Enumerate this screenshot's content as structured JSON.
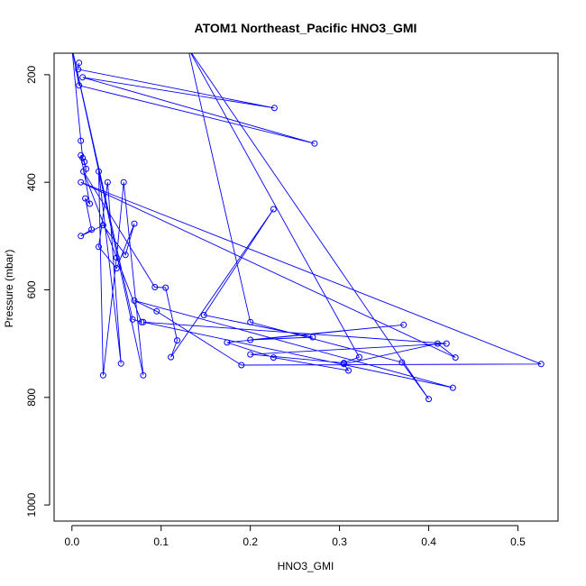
{
  "chart_data": {
    "type": "line",
    "title": "ATOM1 Northeast_Pacific HNO3_GMI",
    "xlabel": "HNO3_GMI",
    "ylabel": "Pressure (mbar)",
    "xlim": [
      -0.02,
      0.545
    ],
    "ylim": [
      1030,
      160
    ],
    "y_reversed": true,
    "x_ticks": [
      0.0,
      0.1,
      0.2,
      0.3,
      0.4,
      0.5
    ],
    "x_tick_labels": [
      "0.0",
      "0.1",
      "0.2",
      "0.3",
      "0.4",
      "0.5"
    ],
    "y_ticks": [
      200,
      400,
      600,
      800,
      1000
    ],
    "y_tick_labels": [
      "200",
      "400",
      "600",
      "800",
      "1000"
    ],
    "series_color": "#0000ff",
    "series": [
      {
        "x": [
          0.008,
          0.007,
          0.227,
          0.012,
          0.272,
          0.008,
          0.0,
          0.01,
          0.012,
          0.016,
          0.014,
          0.01,
          0.02,
          0.015,
          0.022,
          0.01,
          0.035,
          0.06,
          0.07,
          0.05,
          0.03,
          0.04,
          0.055,
          0.03,
          0.035,
          0.05,
          0.058,
          0.08,
          0.0,
          0.068,
          0.078,
          0.013,
          0.093,
          0.105,
          0.118,
          0.111,
          0.226,
          0.148,
          0.27,
          0.2,
          0.372,
          0.174,
          0.226,
          0.31,
          0.305,
          0.41,
          0.43,
          0.01,
          0.526,
          0.19,
          0.095,
          0.07,
          0.427,
          0.08,
          0.42,
          0.2,
          0.305,
          0.322,
          0.13,
          0.4,
          0.37,
          0.2,
          0.13,
          0.2,
          0.118,
          0.03,
          0.01
        ],
        "y": [
          178,
          190,
          262,
          205,
          328,
          220,
          150,
          323,
          355,
          375,
          362,
          350,
          440,
          430,
          488,
          500,
          480,
          535,
          477,
          560,
          520,
          400,
          737,
          380,
          759,
          540,
          400,
          759,
          150,
          655,
          660,
          380,
          595,
          596,
          694,
          725,
          450,
          647,
          688,
          693,
          665,
          698,
          726,
          750,
          738,
          700,
          726,
          400,
          738,
          740,
          640,
          620,
          782,
          660,
          700,
          720,
          736,
          725,
          150,
          803,
          735,
          660,
          150,
          150,
          150,
          150,
          150
        ]
      }
    ]
  }
}
